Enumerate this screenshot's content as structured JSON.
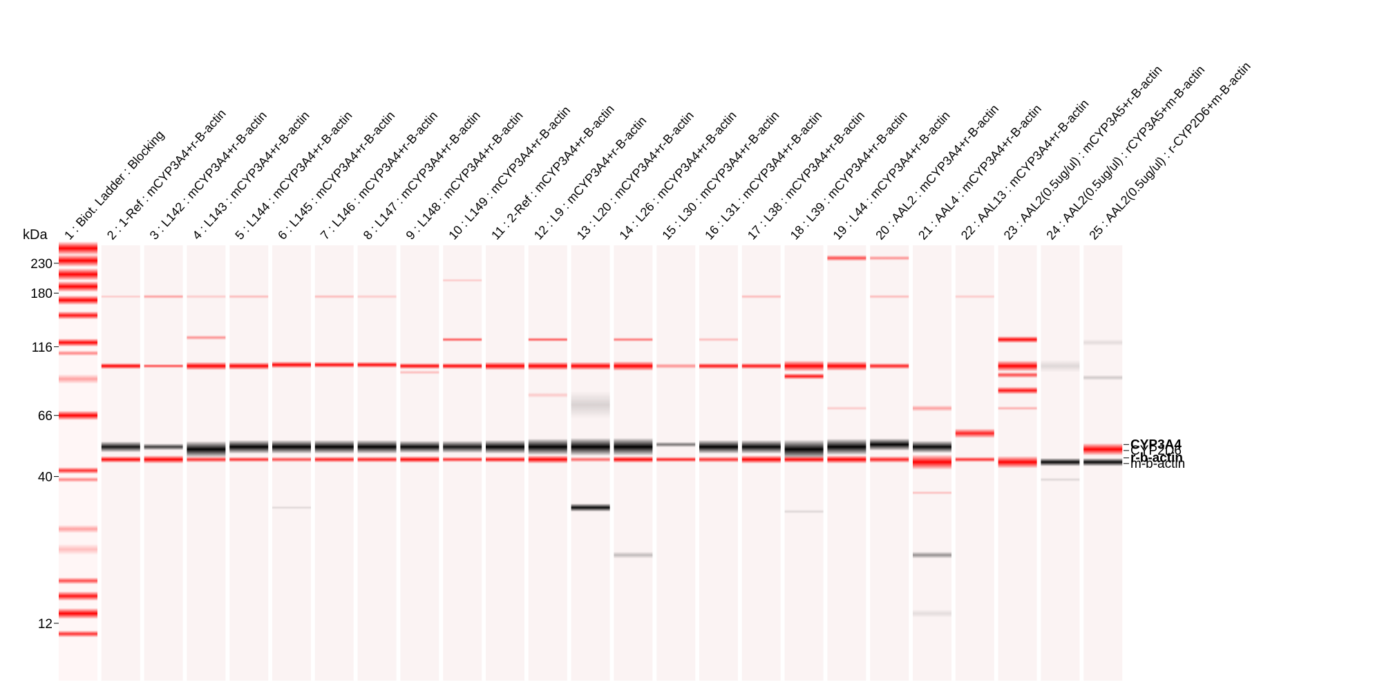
{
  "units_label": "kDa",
  "markers": [
    {
      "label": "230",
      "kda": 230
    },
    {
      "label": "180",
      "kda": 180
    },
    {
      "label": "116",
      "kda": 116
    },
    {
      "label": "66",
      "kda": 66
    },
    {
      "label": "40",
      "kda": 40
    },
    {
      "label": "12",
      "kda": 12
    }
  ],
  "lanes": [
    {
      "label": "1 : Biot. Ladder : Blocking",
      "type": "ladder",
      "bands": [
        {
          "kda": 260,
          "color": "red",
          "i": 1.0,
          "w": 20
        },
        {
          "kda": 235,
          "color": "red",
          "i": 1.0,
          "w": 18
        },
        {
          "kda": 210,
          "color": "red",
          "i": 1.0,
          "w": 18
        },
        {
          "kda": 190,
          "color": "red",
          "i": 0.95,
          "w": 16
        },
        {
          "kda": 170,
          "color": "red",
          "i": 0.9,
          "w": 14
        },
        {
          "kda": 150,
          "color": "red",
          "i": 0.8,
          "w": 12
        },
        {
          "kda": 120,
          "color": "red",
          "i": 0.85,
          "w": 12
        },
        {
          "kda": 110,
          "color": "red",
          "i": 0.4,
          "w": 8
        },
        {
          "kda": 89,
          "color": "red",
          "i": 0.3,
          "w": 14
        },
        {
          "kda": 66,
          "color": "red",
          "i": 1.0,
          "w": 14
        },
        {
          "kda": 42,
          "color": "red",
          "i": 0.7,
          "w": 10
        },
        {
          "kda": 39,
          "color": "red",
          "i": 0.4,
          "w": 8
        },
        {
          "kda": 26,
          "color": "red",
          "i": 0.3,
          "w": 12
        },
        {
          "kda": 22,
          "color": "red",
          "i": 0.2,
          "w": 16
        },
        {
          "kda": 17,
          "color": "red",
          "i": 0.6,
          "w": 10
        },
        {
          "kda": 15,
          "color": "red",
          "i": 0.8,
          "w": 14
        },
        {
          "kda": 13,
          "color": "red",
          "i": 1.0,
          "w": 16
        },
        {
          "kda": 11,
          "color": "red",
          "i": 0.7,
          "w": 10
        }
      ]
    },
    {
      "label": "2 : 1-Ref : mCYP3A4+r-B-actin",
      "bands": [
        {
          "kda": 99,
          "color": "red",
          "i": 0.9,
          "w": 9
        },
        {
          "kda": 51,
          "color": "black",
          "i": 0.8,
          "w": 16
        },
        {
          "kda": 46,
          "color": "red",
          "i": 0.85,
          "w": 10
        },
        {
          "kda": 175,
          "color": "red",
          "i": 0.15,
          "w": 5
        }
      ]
    },
    {
      "label": "3 : L142 : mCYP3A4+r-B-actin",
      "bands": [
        {
          "kda": 99,
          "color": "red",
          "i": 0.6,
          "w": 6
        },
        {
          "kda": 51,
          "color": "black",
          "i": 0.65,
          "w": 10
        },
        {
          "kda": 46,
          "color": "red",
          "i": 1.0,
          "w": 12
        },
        {
          "kda": 175,
          "color": "red",
          "i": 0.3,
          "w": 6
        }
      ]
    },
    {
      "label": "4 : L143 : mCYP3A4+r-B-actin",
      "bands": [
        {
          "kda": 99,
          "color": "red",
          "i": 0.95,
          "w": 12
        },
        {
          "kda": 50,
          "color": "black",
          "i": 0.9,
          "w": 24
        },
        {
          "kda": 46,
          "color": "red",
          "i": 0.7,
          "w": 9
        },
        {
          "kda": 125,
          "color": "red",
          "i": 0.35,
          "w": 7
        },
        {
          "kda": 175,
          "color": "red",
          "i": 0.15,
          "w": 6
        }
      ]
    },
    {
      "label": "5 : L144 : mCYP3A4+r-B-actin",
      "bands": [
        {
          "kda": 99,
          "color": "red",
          "i": 0.9,
          "w": 11
        },
        {
          "kda": 51,
          "color": "black",
          "i": 0.9,
          "w": 20
        },
        {
          "kda": 46,
          "color": "red",
          "i": 0.7,
          "w": 8
        },
        {
          "kda": 175,
          "color": "red",
          "i": 0.2,
          "w": 6
        }
      ]
    },
    {
      "label": "6 : L145 : mCYP3A4+r-B-actin",
      "bands": [
        {
          "kda": 100,
          "color": "red",
          "i": 0.9,
          "w": 10
        },
        {
          "kda": 51,
          "color": "black",
          "i": 0.9,
          "w": 20
        },
        {
          "kda": 46,
          "color": "red",
          "i": 0.6,
          "w": 8
        },
        {
          "kda": 31,
          "color": "black",
          "i": 0.1,
          "w": 5
        }
      ]
    },
    {
      "label": "7 : L146 : mCYP3A4+r-B-actin",
      "bands": [
        {
          "kda": 100,
          "color": "red",
          "i": 0.85,
          "w": 9
        },
        {
          "kda": 51,
          "color": "black",
          "i": 0.9,
          "w": 20
        },
        {
          "kda": 46,
          "color": "red",
          "i": 0.75,
          "w": 9
        },
        {
          "kda": 175,
          "color": "red",
          "i": 0.2,
          "w": 6
        }
      ]
    },
    {
      "label": "8 : L147 : mCYP3A4+r-B-actin",
      "bands": [
        {
          "kda": 100,
          "color": "red",
          "i": 0.85,
          "w": 9
        },
        {
          "kda": 51,
          "color": "black",
          "i": 0.9,
          "w": 20
        },
        {
          "kda": 46,
          "color": "red",
          "i": 0.75,
          "w": 9
        },
        {
          "kda": 175,
          "color": "red",
          "i": 0.15,
          "w": 6
        }
      ]
    },
    {
      "label": "9 : L148 : mCYP3A4+r-B-actin",
      "bands": [
        {
          "kda": 99,
          "color": "red",
          "i": 0.85,
          "w": 9
        },
        {
          "kda": 51,
          "color": "black",
          "i": 0.85,
          "w": 18
        },
        {
          "kda": 46,
          "color": "red",
          "i": 0.85,
          "w": 10
        },
        {
          "kda": 94,
          "color": "red",
          "i": 0.2,
          "w": 6
        }
      ]
    },
    {
      "label": "10 : L149 : mCYP3A4+r-B-actin",
      "bands": [
        {
          "kda": 99,
          "color": "red",
          "i": 0.85,
          "w": 9
        },
        {
          "kda": 51,
          "color": "black",
          "i": 0.8,
          "w": 18
        },
        {
          "kda": 46,
          "color": "red",
          "i": 0.7,
          "w": 8
        },
        {
          "kda": 123,
          "color": "red",
          "i": 0.55,
          "w": 6
        },
        {
          "kda": 200,
          "color": "red",
          "i": 0.15,
          "w": 5
        }
      ]
    },
    {
      "label": "11 : 2-Ref : mCYP3A4+r-B-actin",
      "bands": [
        {
          "kda": 99,
          "color": "red",
          "i": 0.9,
          "w": 12
        },
        {
          "kda": 51,
          "color": "black",
          "i": 0.9,
          "w": 20
        },
        {
          "kda": 46,
          "color": "red",
          "i": 0.8,
          "w": 9
        }
      ]
    },
    {
      "label": "12 : L9 : mCYP3A4+r-B-actin",
      "bands": [
        {
          "kda": 99,
          "color": "red",
          "i": 0.9,
          "w": 12
        },
        {
          "kda": 51,
          "color": "black",
          "i": 0.95,
          "w": 24
        },
        {
          "kda": 46,
          "color": "red",
          "i": 0.85,
          "w": 12
        },
        {
          "kda": 123,
          "color": "red",
          "i": 0.55,
          "w": 6
        },
        {
          "kda": 78,
          "color": "red",
          "i": 0.15,
          "w": 8
        }
      ]
    },
    {
      "label": "13 : L20 : mCYP3A4+r-B-actin",
      "bands": [
        {
          "kda": 99,
          "color": "red",
          "i": 1.0,
          "w": 12
        },
        {
          "kda": 51,
          "color": "black",
          "i": 1.0,
          "w": 26
        },
        {
          "kda": 46,
          "color": "red",
          "i": 0.5,
          "w": 8
        },
        {
          "kda": 31,
          "color": "black",
          "i": 0.85,
          "w": 12
        },
        {
          "kda": 72,
          "color": "black",
          "i": 0.12,
          "w": 40
        }
      ]
    },
    {
      "label": "14 : L26 : mCYP3A4+r-B-actin",
      "bands": [
        {
          "kda": 99,
          "color": "red",
          "i": 1.0,
          "w": 14
        },
        {
          "kda": 51,
          "color": "black",
          "i": 1.0,
          "w": 26
        },
        {
          "kda": 46,
          "color": "red",
          "i": 0.85,
          "w": 10
        },
        {
          "kda": 123,
          "color": "red",
          "i": 0.45,
          "w": 6
        },
        {
          "kda": 21,
          "color": "black",
          "i": 0.2,
          "w": 10
        }
      ]
    },
    {
      "label": "15 : L30 : mCYP3A4+r-B-actin",
      "bands": [
        {
          "kda": 99,
          "color": "red",
          "i": 0.35,
          "w": 8
        },
        {
          "kda": 52,
          "color": "black",
          "i": 0.45,
          "w": 8
        },
        {
          "kda": 46,
          "color": "red",
          "i": 0.75,
          "w": 8
        }
      ]
    },
    {
      "label": "16 : L31 : mCYP3A4+r-B-actin",
      "bands": [
        {
          "kda": 99,
          "color": "red",
          "i": 0.8,
          "w": 9
        },
        {
          "kda": 51,
          "color": "black",
          "i": 0.9,
          "w": 20
        },
        {
          "kda": 46,
          "color": "red",
          "i": 0.7,
          "w": 9
        },
        {
          "kda": 123,
          "color": "red",
          "i": 0.2,
          "w": 6
        }
      ]
    },
    {
      "label": "17 : L38 : mCYP3A4+r-B-actin",
      "bands": [
        {
          "kda": 99,
          "color": "red",
          "i": 0.8,
          "w": 9
        },
        {
          "kda": 51,
          "color": "black",
          "i": 0.85,
          "w": 20
        },
        {
          "kda": 46,
          "color": "red",
          "i": 0.95,
          "w": 12
        },
        {
          "kda": 175,
          "color": "red",
          "i": 0.2,
          "w": 6
        }
      ]
    },
    {
      "label": "18 : L39 : mCYP3A4+r-B-actin",
      "bands": [
        {
          "kda": 99,
          "color": "red",
          "i": 1.0,
          "w": 16
        },
        {
          "kda": 91,
          "color": "red",
          "i": 0.8,
          "w": 9
        },
        {
          "kda": 50,
          "color": "black",
          "i": 1.0,
          "w": 28
        },
        {
          "kda": 46,
          "color": "red",
          "i": 0.85,
          "w": 10
        },
        {
          "kda": 30,
          "color": "black",
          "i": 0.1,
          "w": 6
        }
      ]
    },
    {
      "label": "19 : L44 : mCYP3A4+r-B-actin",
      "bands": [
        {
          "kda": 99,
          "color": "red",
          "i": 0.95,
          "w": 14
        },
        {
          "kda": 51,
          "color": "black",
          "i": 0.95,
          "w": 24
        },
        {
          "kda": 46,
          "color": "red",
          "i": 0.9,
          "w": 12
        },
        {
          "kda": 240,
          "color": "red",
          "i": 0.6,
          "w": 9
        },
        {
          "kda": 70,
          "color": "red",
          "i": 0.15,
          "w": 6
        }
      ]
    },
    {
      "label": "20 : AAL2 : mCYP3A4+r-B-actin",
      "bands": [
        {
          "kda": 99,
          "color": "red",
          "i": 0.75,
          "w": 9
        },
        {
          "kda": 52,
          "color": "black",
          "i": 0.9,
          "w": 18
        },
        {
          "kda": 46,
          "color": "red",
          "i": 0.75,
          "w": 10
        },
        {
          "kda": 240,
          "color": "red",
          "i": 0.35,
          "w": 7
        },
        {
          "kda": 175,
          "color": "red",
          "i": 0.2,
          "w": 6
        }
      ]
    },
    {
      "label": "21 : AAL4 : mCYP3A4+r-B-actin",
      "bands": [
        {
          "kda": 51,
          "color": "black",
          "i": 0.85,
          "w": 18
        },
        {
          "kda": 45,
          "color": "red",
          "i": 1.0,
          "w": 22
        },
        {
          "kda": 70,
          "color": "red",
          "i": 0.3,
          "w": 9
        },
        {
          "kda": 21,
          "color": "black",
          "i": 0.35,
          "w": 10
        },
        {
          "kda": 13,
          "color": "black",
          "i": 0.08,
          "w": 12
        },
        {
          "kda": 35,
          "color": "red",
          "i": 0.2,
          "w": 5
        }
      ]
    },
    {
      "label": "22 : AAL13 : mCYP3A4+r-B-actin",
      "bands": [
        {
          "kda": 57,
          "color": "red",
          "i": 0.75,
          "w": 14
        },
        {
          "kda": 46,
          "color": "red",
          "i": 0.7,
          "w": 8
        },
        {
          "kda": 175,
          "color": "red",
          "i": 0.15,
          "w": 6
        }
      ]
    },
    {
      "label": "23 : AAL2(0.5ug/ul) : mCYP3A5+r-B-actin",
      "bands": [
        {
          "kda": 123,
          "color": "red",
          "i": 0.85,
          "w": 10
        },
        {
          "kda": 99,
          "color": "red",
          "i": 1.0,
          "w": 16
        },
        {
          "kda": 92,
          "color": "red",
          "i": 0.6,
          "w": 9
        },
        {
          "kda": 81,
          "color": "red",
          "i": 0.8,
          "w": 11
        },
        {
          "kda": 45,
          "color": "red",
          "i": 1.0,
          "w": 18
        },
        {
          "kda": 70,
          "color": "red",
          "i": 0.25,
          "w": 6
        }
      ]
    },
    {
      "label": "24 : AAL2(0.5ug/ul) : rCYP3A5+m-B-actin",
      "bands": [
        {
          "kda": 45,
          "color": "black",
          "i": 0.85,
          "w": 12
        },
        {
          "kda": 99,
          "color": "black",
          "i": 0.1,
          "w": 18
        },
        {
          "kda": 39,
          "color": "black",
          "i": 0.1,
          "w": 6
        }
      ]
    },
    {
      "label": "25 : AAL2(0.5ug/ul) : r-CYP2D6+m-B-actin",
      "bands": [
        {
          "kda": 50,
          "color": "red",
          "i": 0.95,
          "w": 18
        },
        {
          "kda": 45,
          "color": "black",
          "i": 0.85,
          "w": 12
        },
        {
          "kda": 90,
          "color": "black",
          "i": 0.15,
          "w": 8
        },
        {
          "kda": 120,
          "color": "black",
          "i": 0.08,
          "w": 10
        }
      ]
    }
  ],
  "right_annotations": [
    {
      "label": "CYP3A4",
      "kda": 52,
      "bold": true
    },
    {
      "label": "CYP2D6",
      "kda": 49.5,
      "bold": false
    },
    {
      "label": "r-b-actin",
      "kda": 46.6,
      "bold": true
    },
    {
      "label": "m-b-actin",
      "kda": 44.5,
      "bold": false
    }
  ],
  "colors": {
    "red": "#ff0000",
    "black": "#000000",
    "lane_bg": "#fbf3f3",
    "ladder_bg": "#fff6f6"
  }
}
